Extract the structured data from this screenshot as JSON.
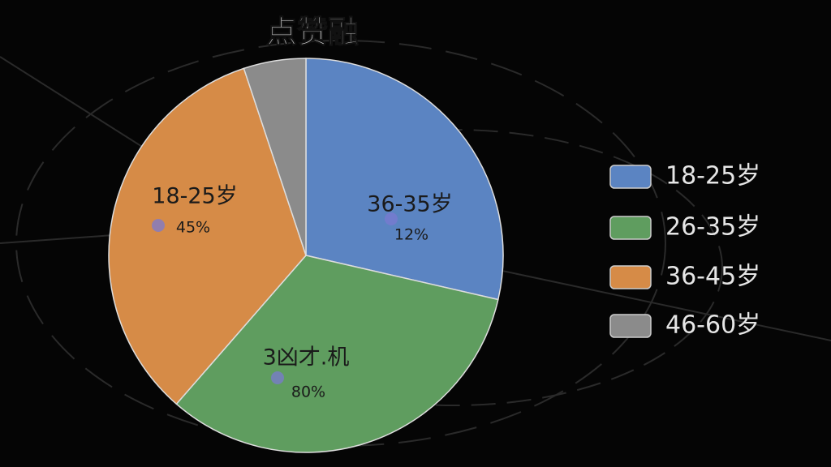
{
  "chart_data": {
    "type": "pie",
    "title": "点赞融",
    "categories": [
      "18-25岁",
      "26-35岁",
      "36-45岁",
      "46-60岁"
    ],
    "values": [
      28.6,
      32.8,
      33.5,
      5.1
    ],
    "colors": [
      "#5b84c2",
      "#5f9d5f",
      "#d68b47",
      "#8b8b8b"
    ],
    "legend": "right",
    "annotations": [
      {
        "text": "18-25岁",
        "percent": "45%"
      },
      {
        "text": "3凶才.机",
        "percent": "80%"
      },
      {
        "text": "36-35岁",
        "percent": "12%"
      }
    ]
  }
}
